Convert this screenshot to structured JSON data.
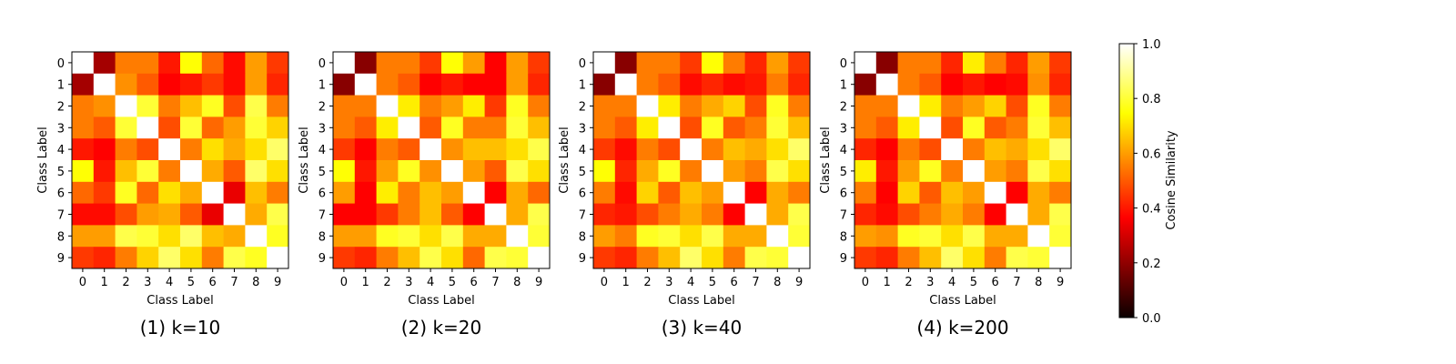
{
  "colormap": "hot",
  "colorbar": {
    "label": "Cosine Similarity",
    "range": [
      0.0,
      1.0
    ],
    "ticks": [
      "0.0",
      "0.2",
      "0.4",
      "0.6",
      "0.8",
      "1.0"
    ]
  },
  "chart_data": [
    {
      "type": "heatmap",
      "title": "(1) k=10",
      "xlabel": "Class Label",
      "ylabel": "Class Label",
      "x_ticks": [
        "0",
        "1",
        "2",
        "3",
        "4",
        "5",
        "6",
        "7",
        "8",
        "9"
      ],
      "y_ticks": [
        "0",
        "1",
        "2",
        "3",
        "4",
        "5",
        "6",
        "7",
        "8",
        "9"
      ],
      "zlim": [
        0,
        1
      ],
      "values": [
        [
          1.0,
          0.22,
          0.55,
          0.55,
          0.4,
          0.75,
          0.52,
          0.38,
          0.6,
          0.45
        ],
        [
          0.22,
          1.0,
          0.58,
          0.5,
          0.35,
          0.4,
          0.45,
          0.38,
          0.6,
          0.42
        ],
        [
          0.55,
          0.58,
          1.0,
          0.8,
          0.55,
          0.65,
          0.78,
          0.48,
          0.82,
          0.55
        ],
        [
          0.55,
          0.5,
          0.8,
          1.0,
          0.48,
          0.8,
          0.52,
          0.6,
          0.8,
          0.68
        ],
        [
          0.4,
          0.35,
          0.55,
          0.48,
          1.0,
          0.55,
          0.7,
          0.62,
          0.7,
          0.85
        ],
        [
          0.75,
          0.4,
          0.65,
          0.8,
          0.55,
          1.0,
          0.62,
          0.5,
          0.85,
          0.7
        ],
        [
          0.52,
          0.45,
          0.78,
          0.52,
          0.7,
          0.62,
          1.0,
          0.32,
          0.65,
          0.55
        ],
        [
          0.38,
          0.38,
          0.48,
          0.6,
          0.62,
          0.5,
          0.32,
          1.0,
          0.62,
          0.82
        ],
        [
          0.6,
          0.6,
          0.82,
          0.8,
          0.7,
          0.85,
          0.65,
          0.62,
          1.0,
          0.78
        ],
        [
          0.45,
          0.42,
          0.55,
          0.68,
          0.85,
          0.7,
          0.55,
          0.82,
          0.78,
          1.0
        ]
      ]
    },
    {
      "type": "heatmap",
      "title": "(2) k=20",
      "xlabel": "Class Label",
      "ylabel": "Class Label",
      "x_ticks": [
        "0",
        "1",
        "2",
        "3",
        "4",
        "5",
        "6",
        "7",
        "8",
        "9"
      ],
      "y_ticks": [
        "0",
        "1",
        "2",
        "3",
        "4",
        "5",
        "6",
        "7",
        "8",
        "9"
      ],
      "zlim": [
        0,
        1
      ],
      "values": [
        [
          1.0,
          0.18,
          0.55,
          0.55,
          0.45,
          0.75,
          0.6,
          0.35,
          0.6,
          0.45
        ],
        [
          0.18,
          1.0,
          0.55,
          0.5,
          0.35,
          0.4,
          0.35,
          0.35,
          0.6,
          0.42
        ],
        [
          0.55,
          0.55,
          1.0,
          0.72,
          0.55,
          0.6,
          0.72,
          0.45,
          0.78,
          0.55
        ],
        [
          0.55,
          0.5,
          0.72,
          1.0,
          0.5,
          0.78,
          0.55,
          0.55,
          0.8,
          0.65
        ],
        [
          0.45,
          0.35,
          0.55,
          0.5,
          1.0,
          0.58,
          0.65,
          0.65,
          0.7,
          0.82
        ],
        [
          0.75,
          0.4,
          0.6,
          0.78,
          0.58,
          1.0,
          0.6,
          0.5,
          0.82,
          0.7
        ],
        [
          0.6,
          0.35,
          0.72,
          0.55,
          0.65,
          0.6,
          1.0,
          0.35,
          0.62,
          0.52
        ],
        [
          0.35,
          0.35,
          0.45,
          0.55,
          0.65,
          0.5,
          0.35,
          1.0,
          0.62,
          0.82
        ],
        [
          0.6,
          0.6,
          0.78,
          0.8,
          0.7,
          0.82,
          0.62,
          0.62,
          1.0,
          0.8
        ],
        [
          0.45,
          0.42,
          0.55,
          0.65,
          0.82,
          0.7,
          0.52,
          0.82,
          0.8,
          1.0
        ]
      ]
    },
    {
      "type": "heatmap",
      "title": "(3) k=40",
      "xlabel": "Class Label",
      "ylabel": "Class Label",
      "x_ticks": [
        "0",
        "1",
        "2",
        "3",
        "4",
        "5",
        "6",
        "7",
        "8",
        "9"
      ],
      "y_ticks": [
        "0",
        "1",
        "2",
        "3",
        "4",
        "5",
        "6",
        "7",
        "8",
        "9"
      ],
      "zlim": [
        0,
        1
      ],
      "values": [
        [
          1.0,
          0.18,
          0.55,
          0.55,
          0.45,
          0.75,
          0.55,
          0.42,
          0.6,
          0.45
        ],
        [
          0.18,
          1.0,
          0.55,
          0.5,
          0.38,
          0.42,
          0.38,
          0.4,
          0.55,
          0.42
        ],
        [
          0.55,
          0.55,
          1.0,
          0.72,
          0.55,
          0.62,
          0.68,
          0.48,
          0.78,
          0.55
        ],
        [
          0.55,
          0.5,
          0.72,
          1.0,
          0.48,
          0.78,
          0.5,
          0.55,
          0.8,
          0.65
        ],
        [
          0.45,
          0.38,
          0.55,
          0.48,
          1.0,
          0.55,
          0.65,
          0.62,
          0.7,
          0.85
        ],
        [
          0.75,
          0.42,
          0.62,
          0.78,
          0.55,
          1.0,
          0.6,
          0.55,
          0.82,
          0.7
        ],
        [
          0.55,
          0.38,
          0.68,
          0.5,
          0.65,
          0.6,
          1.0,
          0.35,
          0.62,
          0.55
        ],
        [
          0.42,
          0.4,
          0.48,
          0.55,
          0.62,
          0.55,
          0.35,
          1.0,
          0.62,
          0.82
        ],
        [
          0.6,
          0.55,
          0.78,
          0.8,
          0.7,
          0.82,
          0.62,
          0.62,
          1.0,
          0.8
        ],
        [
          0.45,
          0.42,
          0.55,
          0.65,
          0.85,
          0.7,
          0.55,
          0.82,
          0.8,
          1.0
        ]
      ]
    },
    {
      "type": "heatmap",
      "title": "(4) k=200",
      "xlabel": "Class Label",
      "ylabel": "Class Label",
      "x_ticks": [
        "0",
        "1",
        "2",
        "3",
        "4",
        "5",
        "6",
        "7",
        "8",
        "9"
      ],
      "y_ticks": [
        "0",
        "1",
        "2",
        "3",
        "4",
        "5",
        "6",
        "7",
        "8",
        "9"
      ],
      "zlim": [
        0,
        1
      ],
      "values": [
        [
          1.0,
          0.18,
          0.55,
          0.55,
          0.42,
          0.72,
          0.55,
          0.42,
          0.6,
          0.45
        ],
        [
          0.18,
          1.0,
          0.55,
          0.5,
          0.35,
          0.4,
          0.35,
          0.38,
          0.58,
          0.42
        ],
        [
          0.55,
          0.55,
          1.0,
          0.72,
          0.55,
          0.6,
          0.68,
          0.48,
          0.78,
          0.55
        ],
        [
          0.55,
          0.5,
          0.72,
          1.0,
          0.48,
          0.78,
          0.5,
          0.55,
          0.8,
          0.65
        ],
        [
          0.42,
          0.35,
          0.55,
          0.48,
          1.0,
          0.55,
          0.65,
          0.62,
          0.7,
          0.85
        ],
        [
          0.72,
          0.4,
          0.6,
          0.78,
          0.55,
          1.0,
          0.6,
          0.55,
          0.82,
          0.7
        ],
        [
          0.55,
          0.35,
          0.68,
          0.5,
          0.65,
          0.6,
          1.0,
          0.35,
          0.62,
          0.55
        ],
        [
          0.42,
          0.38,
          0.48,
          0.55,
          0.62,
          0.55,
          0.35,
          1.0,
          0.62,
          0.82
        ],
        [
          0.6,
          0.58,
          0.78,
          0.8,
          0.7,
          0.82,
          0.62,
          0.62,
          1.0,
          0.8
        ],
        [
          0.45,
          0.42,
          0.55,
          0.65,
          0.85,
          0.7,
          0.55,
          0.82,
          0.8,
          1.0
        ]
      ]
    }
  ]
}
